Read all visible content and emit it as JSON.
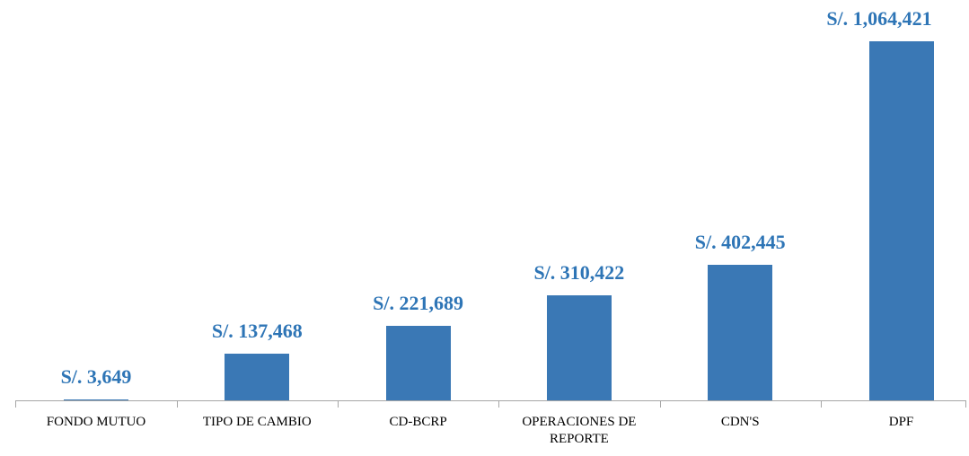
{
  "chart_data": {
    "type": "bar",
    "categories": [
      "FONDO MUTUO",
      "TIPO DE CAMBIO",
      "CD-BCRP",
      "OPERACIONES DE REPORTE",
      "CDN'S",
      "DPF"
    ],
    "values": [
      3649,
      137468,
      221689,
      310422,
      402445,
      1064421
    ],
    "value_labels": [
      "S/. 3,649",
      "S/. 137,468",
      "S/. 221,689",
      "S/. 310,422",
      "S/. 402,445",
      "S/. 1,064,421"
    ],
    "color": "#3a78b5",
    "label_color": "#2e75b6"
  }
}
